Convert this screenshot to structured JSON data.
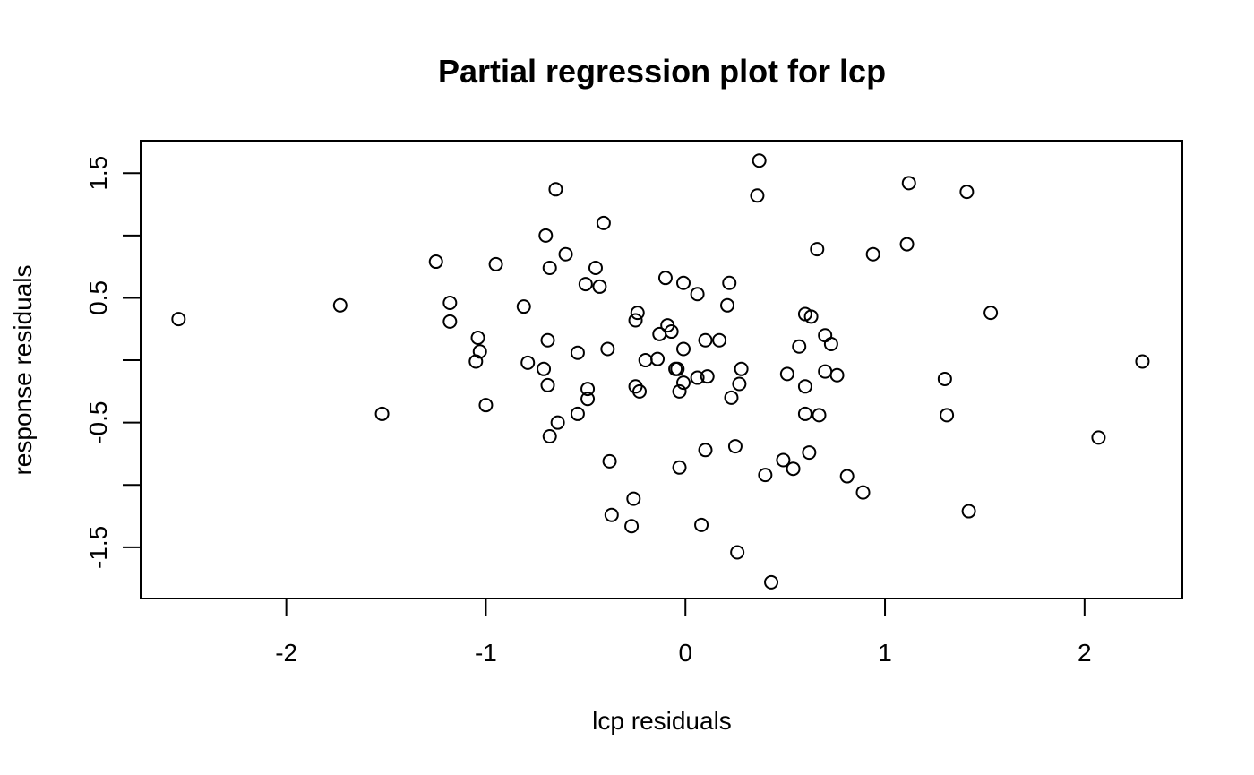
{
  "chart_data": {
    "type": "scatter",
    "title": "Partial regression plot for lcp",
    "xlabel": "lcp residuals",
    "ylabel": "response residuals",
    "xlim": [
      -2.73,
      2.49
    ],
    "ylim": [
      -1.91,
      1.76
    ],
    "xticks": [
      -2,
      -1,
      0,
      1,
      2
    ],
    "yticks": [
      -1.5,
      -0.5,
      0.5,
      1.5
    ],
    "yticks_minor": [
      -1.0,
      0.0,
      1.0
    ],
    "x_tick_labels": [
      "-2",
      "-1",
      "0",
      "1",
      "2"
    ],
    "y_tick_labels": [
      "-1.5",
      "-0.5",
      "0.5",
      "1.5"
    ],
    "grid": false,
    "marker": "open-circle",
    "points": [
      [
        -2.54,
        0.33
      ],
      [
        -1.73,
        0.44
      ],
      [
        -1.52,
        -0.43
      ],
      [
        -1.25,
        0.79
      ],
      [
        -1.18,
        0.46
      ],
      [
        -1.18,
        0.31
      ],
      [
        -1.04,
        0.18
      ],
      [
        -1.03,
        0.07
      ],
      [
        -1.05,
        -0.01
      ],
      [
        -1.0,
        -0.36
      ],
      [
        -0.95,
        0.77
      ],
      [
        -0.81,
        0.43
      ],
      [
        -0.79,
        -0.02
      ],
      [
        -0.71,
        -0.07
      ],
      [
        -0.7,
        1.0
      ],
      [
        -0.69,
        0.16
      ],
      [
        -0.69,
        -0.2
      ],
      [
        -0.68,
        0.74
      ],
      [
        -0.68,
        -0.61
      ],
      [
        -0.65,
        1.37
      ],
      [
        -0.64,
        -0.5
      ],
      [
        -0.6,
        0.85
      ],
      [
        -0.54,
        0.06
      ],
      [
        -0.54,
        -0.43
      ],
      [
        -0.5,
        0.61
      ],
      [
        -0.49,
        -0.31
      ],
      [
        -0.49,
        -0.23
      ],
      [
        -0.45,
        0.74
      ],
      [
        -0.43,
        0.59
      ],
      [
        -0.41,
        1.1
      ],
      [
        -0.39,
        0.09
      ],
      [
        -0.38,
        -0.81
      ],
      [
        -0.37,
        -1.24
      ],
      [
        -0.27,
        -1.33
      ],
      [
        -0.26,
        -1.11
      ],
      [
        -0.25,
        -0.21
      ],
      [
        -0.25,
        0.32
      ],
      [
        -0.24,
        0.38
      ],
      [
        -0.23,
        -0.25
      ],
      [
        -0.2,
        0.0
      ],
      [
        -0.14,
        0.01
      ],
      [
        -0.13,
        0.21
      ],
      [
        -0.1,
        0.66
      ],
      [
        -0.09,
        0.28
      ],
      [
        -0.07,
        0.23
      ],
      [
        -0.05,
        -0.07
      ],
      [
        -0.04,
        -0.07
      ],
      [
        -0.03,
        -0.25
      ],
      [
        -0.03,
        -0.86
      ],
      [
        -0.01,
        0.62
      ],
      [
        -0.01,
        0.09
      ],
      [
        -0.01,
        -0.18
      ],
      [
        0.06,
        0.53
      ],
      [
        0.06,
        -0.14
      ],
      [
        0.08,
        -1.32
      ],
      [
        0.1,
        0.16
      ],
      [
        0.1,
        -0.72
      ],
      [
        0.11,
        -0.13
      ],
      [
        0.17,
        0.16
      ],
      [
        0.21,
        0.44
      ],
      [
        0.22,
        0.62
      ],
      [
        0.23,
        -0.3
      ],
      [
        0.25,
        -0.69
      ],
      [
        0.26,
        -1.54
      ],
      [
        0.27,
        -0.19
      ],
      [
        0.28,
        -0.07
      ],
      [
        0.36,
        1.32
      ],
      [
        0.37,
        1.6
      ],
      [
        0.4,
        -0.92
      ],
      [
        0.43,
        -1.78
      ],
      [
        0.49,
        -0.8
      ],
      [
        0.51,
        -0.11
      ],
      [
        0.54,
        -0.87
      ],
      [
        0.57,
        0.11
      ],
      [
        0.6,
        0.37
      ],
      [
        0.6,
        -0.21
      ],
      [
        0.6,
        -0.43
      ],
      [
        0.62,
        -0.74
      ],
      [
        0.63,
        0.35
      ],
      [
        0.66,
        0.89
      ],
      [
        0.67,
        -0.44
      ],
      [
        0.7,
        0.2
      ],
      [
        0.7,
        -0.09
      ],
      [
        0.73,
        0.13
      ],
      [
        0.76,
        -0.12
      ],
      [
        0.81,
        -0.93
      ],
      [
        0.89,
        -1.06
      ],
      [
        0.94,
        0.85
      ],
      [
        1.11,
        0.93
      ],
      [
        1.12,
        1.42
      ],
      [
        1.3,
        -0.15
      ],
      [
        1.31,
        -0.44
      ],
      [
        1.41,
        1.35
      ],
      [
        1.42,
        -1.21
      ],
      [
        1.53,
        0.38
      ],
      [
        2.07,
        -0.62
      ],
      [
        2.29,
        -0.01
      ]
    ]
  }
}
